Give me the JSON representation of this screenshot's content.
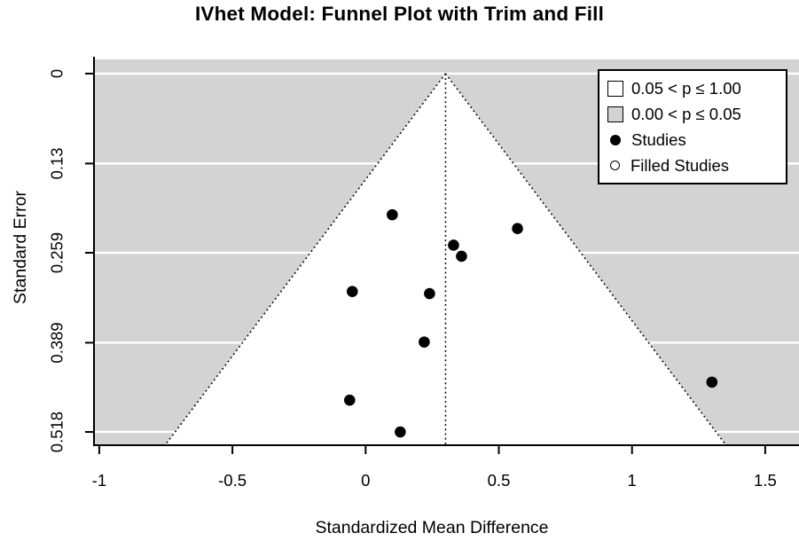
{
  "chart_data": {
    "type": "scatter",
    "subtype": "funnel-plot-trim-and-fill",
    "title": "IVhet Model: Funnel Plot with Trim and Fill",
    "xlabel": "Standardized Mean Difference",
    "ylabel": "Standard Error",
    "xlim": [
      -1.02,
      1.63
    ],
    "se_axis_max_at_plot_bottom": 0.537,
    "y_axis_inverted": true,
    "grid": true,
    "legend_position": "top-right",
    "x_ticks": [
      {
        "value": -1,
        "label": "-1"
      },
      {
        "value": -0.5,
        "label": "-0.5"
      },
      {
        "value": 0,
        "label": "0"
      },
      {
        "value": 0.5,
        "label": "0.5"
      },
      {
        "value": 1,
        "label": "1"
      },
      {
        "value": 1.5,
        "label": "1.5"
      }
    ],
    "y_ticks": [
      {
        "value": 0,
        "label": "0"
      },
      {
        "value": 0.13,
        "label": "0.13"
      },
      {
        "value": 0.259,
        "label": "0.259"
      },
      {
        "value": 0.389,
        "label": "0.389"
      },
      {
        "value": 0.518,
        "label": "0.518"
      }
    ],
    "funnel": {
      "pooled_estimate": 0.3,
      "ci_z": 1.96
    },
    "series": [
      {
        "name": "Studies",
        "marker": "filled-circle",
        "points": [
          {
            "smd": 0.1,
            "se": 0.204
          },
          {
            "smd": 0.33,
            "se": 0.248
          },
          {
            "smd": 0.36,
            "se": 0.264
          },
          {
            "smd": 0.57,
            "se": 0.224
          },
          {
            "smd": -0.05,
            "se": 0.315
          },
          {
            "smd": 0.24,
            "se": 0.318
          },
          {
            "smd": 0.22,
            "se": 0.388
          },
          {
            "smd": -0.06,
            "se": 0.472
          },
          {
            "smd": 0.13,
            "se": 0.518
          },
          {
            "smd": 1.3,
            "se": 0.446
          }
        ]
      },
      {
        "name": "Filled Studies",
        "marker": "open-circle",
        "points": []
      }
    ],
    "colors": {
      "significant_region": "#d3d3d3",
      "nonsignificant_region": "#ffffff",
      "gridline": "#ffffff",
      "point": "#000000",
      "boundary_line": "#000000",
      "axis": "#000000"
    }
  },
  "legend": {
    "items": [
      {
        "label": "0.05 < p ≤ 1.00",
        "swatch": "square-white"
      },
      {
        "label": "0.00 < p ≤ 0.05",
        "swatch": "square-gray"
      },
      {
        "label": "Studies",
        "swatch": "dot-filled"
      },
      {
        "label": "Filled Studies",
        "swatch": "dot-open"
      }
    ]
  }
}
